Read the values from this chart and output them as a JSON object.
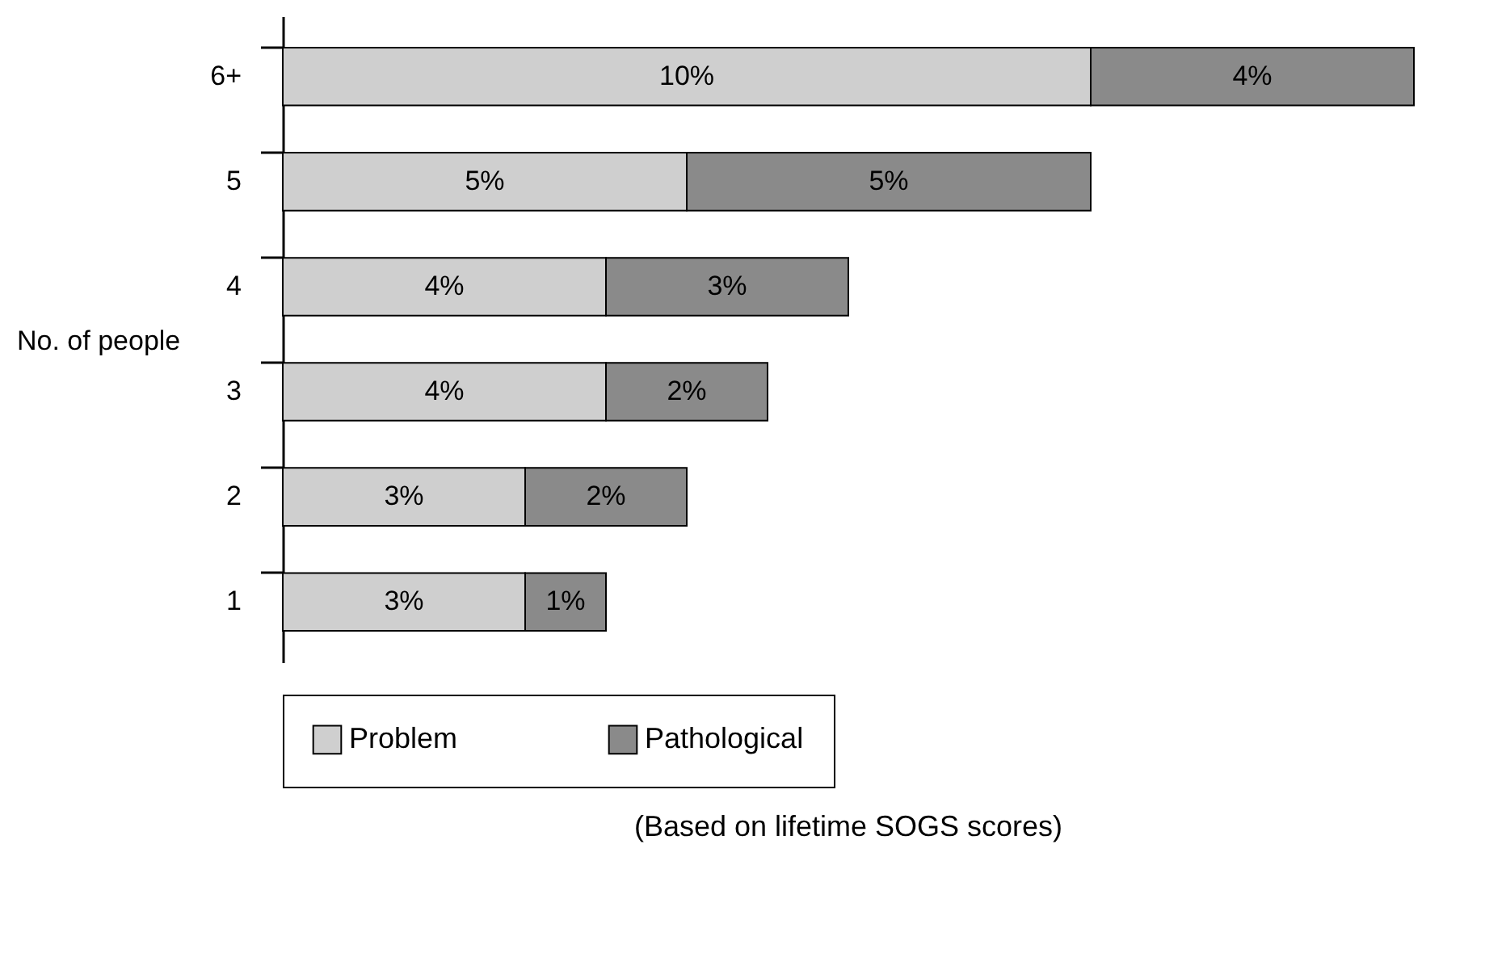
{
  "chart_data": {
    "type": "bar",
    "orientation": "horizontal",
    "stacked": true,
    "ylabel": "No. of people",
    "categories": [
      "6+",
      "5",
      "4",
      "3",
      "2",
      "1"
    ],
    "series": [
      {
        "name": "Problem",
        "color": "#cfcfcf",
        "values": [
          10,
          5,
          4,
          4,
          3,
          3
        ],
        "value_labels": [
          "10%",
          "5%",
          "4%",
          "4%",
          "3%",
          "3%"
        ]
      },
      {
        "name": "Pathological",
        "color": "#8a8a8a",
        "values": [
          4,
          5,
          3,
          2,
          2,
          1
        ],
        "value_labels": [
          "4%",
          "5%",
          "3%",
          "2%",
          "2%",
          "1%"
        ]
      }
    ],
    "legend": "bottom",
    "tick_labels": "y",
    "annotations": [
      "(Based on lifetime SOGS scores)"
    ]
  }
}
